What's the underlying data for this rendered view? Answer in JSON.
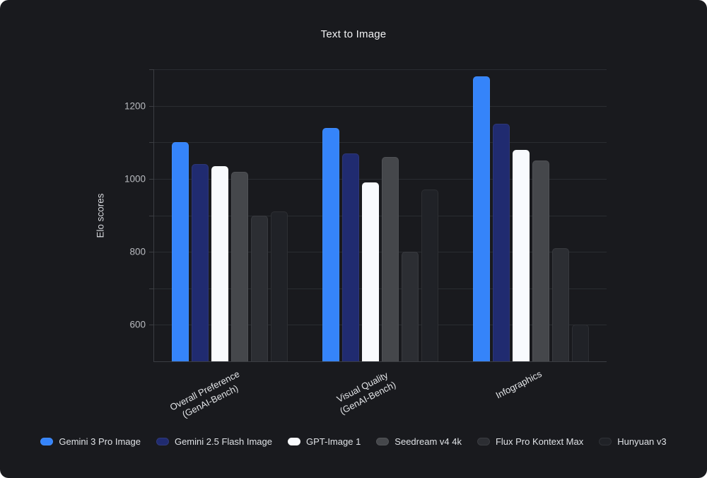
{
  "chart_data": {
    "type": "bar",
    "title": "Text to Image",
    "xlabel": "",
    "ylabel": "Elo scores",
    "categories": [
      "Overall Preference\n(GenAI-Bench)",
      "Visual Quality\n(GenAI-Bench)",
      "Infographics"
    ],
    "series": [
      {
        "name": "Gemini 3 Pro Image",
        "color": "#3584FA",
        "values": [
          1100,
          1140,
          1280
        ]
      },
      {
        "name": "Gemini 2.5 Flash Image",
        "color": "#202B70",
        "values": [
          1040,
          1070,
          1150
        ]
      },
      {
        "name": "GPT-Image 1",
        "color": "#F8FAFD",
        "values": [
          1035,
          990,
          1080
        ]
      },
      {
        "name": "Seedream v4 4k",
        "color": "#45474B",
        "values": [
          1020,
          1060,
          1050
        ]
      },
      {
        "name": "Flux Pro Kontext Max",
        "color": "#2C2E33",
        "values": [
          900,
          800,
          810
        ]
      },
      {
        "name": "Hunyuan v3",
        "color": "#202227",
        "values": [
          910,
          970,
          600
        ]
      }
    ],
    "ylim": [
      500,
      1300
    ],
    "ytick_labels": [
      600,
      800,
      1000,
      1200
    ],
    "grid_step": 100,
    "grid": true,
    "legend_position": "bottom",
    "background": "#191A1E"
  }
}
